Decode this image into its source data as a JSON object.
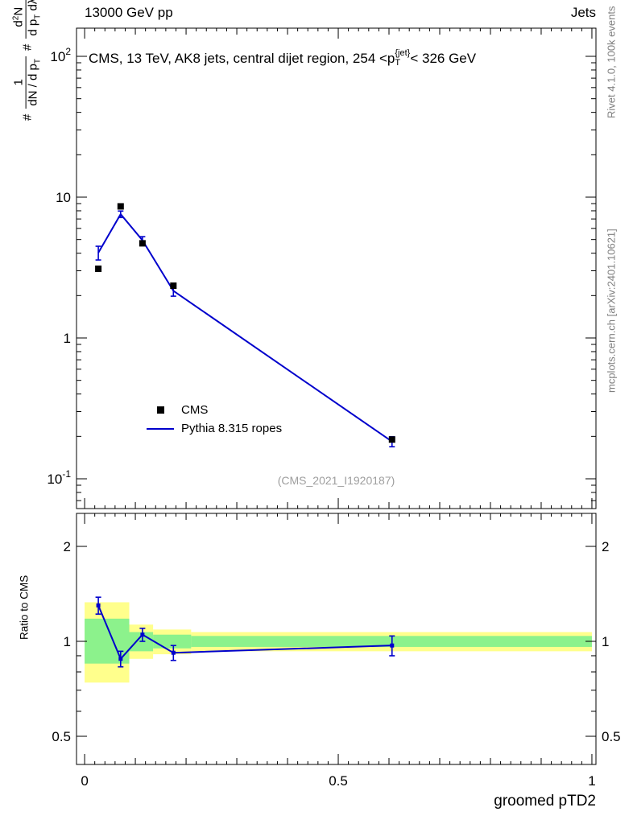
{
  "header": {
    "left": "13000 GeV pp",
    "right": "Jets"
  },
  "title": {
    "part1": "CMS, 13 TeV, AK8 jets, central dijet region, 254 <p",
    "sup": "{jet}",
    "sub": "T",
    "part2": "< 326 GeV"
  },
  "labels": {
    "ylabel": {
      "hash1": "#",
      "frac1_num": "1",
      "frac1_den_main": "dN / d p",
      "frac1_den_sub": "T",
      "hash2": "#",
      "frac2_num_d": "d",
      "frac2_num_sup": "2",
      "frac2_num_n": "N",
      "frac2_den_main": "d p",
      "frac2_den_sub": "T",
      "frac2_den_tail": " dλ"
    },
    "ratio_ylabel": "Ratio to CMS"
  },
  "legend": {
    "items": [
      {
        "label": "CMS",
        "marker": "black-square"
      },
      {
        "label": "Pythia 8.315 ropes",
        "marker": "blue-line"
      }
    ]
  },
  "watermark": "(CMS_2021_I1920187)",
  "side_texts": {
    "top": "Rivet 4.1.0, 100k events",
    "bottom": "mcplots.cern.ch [arXiv:2401.10621]"
  },
  "chart_data": {
    "type": "line",
    "title": "CMS, 13 TeV, AK8 jets, central dijet region, 254 < pT{jet} < 326 GeV",
    "xlabel": "groomed pTD2",
    "ylabel": "# 1/(dN/dpT) # d2N/(dpT dlambda)",
    "ratio_ylabel": "Ratio to CMS",
    "x_scale": "linear",
    "y_scale_main": "log",
    "y_scale_ratio": "log",
    "xlim": [
      0,
      1
    ],
    "ylim_main": [
      0.06,
      160
    ],
    "ylim_ratio": [
      0.41,
      2.5
    ],
    "grid": false,
    "legend_position": "left-center",
    "x": [
      0.027,
      0.071,
      0.114,
      0.175,
      0.606
    ],
    "series": [
      {
        "name": "CMS",
        "style": "square-marker",
        "color": "#000000",
        "values": [
          3.1,
          8.6,
          4.7,
          2.35,
          0.19
        ]
      },
      {
        "name": "Pythia 8.315 ropes",
        "style": "line",
        "color": "#0000cc",
        "values": [
          4.03,
          7.57,
          4.94,
          2.16,
          0.184
        ],
        "yerr": [
          0.45,
          0.4,
          0.3,
          0.18,
          0.015
        ]
      }
    ],
    "ratio": {
      "name": "Pythia 8.315 ropes / CMS",
      "color": "#0000cc",
      "values": [
        1.3,
        0.88,
        1.05,
        0.92,
        0.97
      ],
      "yerr": [
        0.08,
        0.05,
        0.05,
        0.05,
        0.07
      ]
    },
    "ratio_bands": [
      {
        "x0": 0.0,
        "x1": 0.088,
        "yellow": [
          0.74,
          1.33
        ],
        "green": [
          0.85,
          1.18
        ]
      },
      {
        "x0": 0.088,
        "x1": 0.135,
        "yellow": [
          0.88,
          1.13
        ],
        "green": [
          0.93,
          1.07
        ]
      },
      {
        "x0": 0.135,
        "x1": 0.21,
        "yellow": [
          0.91,
          1.09
        ],
        "green": [
          0.95,
          1.05
        ]
      },
      {
        "x0": 0.21,
        "x1": 1.0,
        "yellow": [
          0.93,
          1.07
        ],
        "green": [
          0.96,
          1.04
        ]
      }
    ],
    "colors": {
      "pythia": "#0000cc",
      "cms": "#000000",
      "band_yellow": "#ffff8c",
      "band_green": "#8cf28c",
      "frame": "#000000",
      "watermark": "#9e9e9e",
      "side_text": "#808080"
    },
    "axes": {
      "xticks": [
        {
          "value": 0,
          "label": "0"
        },
        {
          "value": 0.5,
          "label": "0.5"
        },
        {
          "value": 1,
          "label": "1"
        }
      ],
      "yticks_main": [
        {
          "value": 100,
          "label": "10^2"
        },
        {
          "value": 10,
          "label": "10"
        },
        {
          "value": 1,
          "label": "1"
        },
        {
          "value": 0.1,
          "label": "10^-1"
        }
      ],
      "yticks_ratio": [
        {
          "value": 2,
          "label": "2"
        },
        {
          "value": 1,
          "label": "1"
        },
        {
          "value": 0.5,
          "label": "0.5"
        }
      ]
    }
  }
}
